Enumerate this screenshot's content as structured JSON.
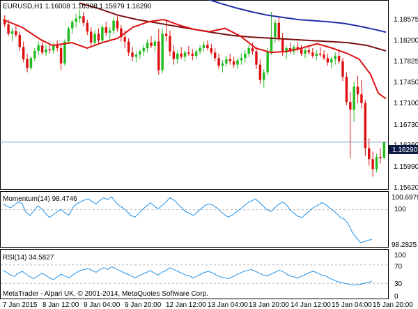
{
  "main_panel": {
    "title": "EURUSD,H1  1.16008 1.16308 1.15979 1.16290",
    "current_price_label": "1.16290",
    "price_ticks": [
      "1.18575",
      "1.18200",
      "1.17825",
      "1.17450",
      "1.17100",
      "1.16730",
      "1.16360",
      "1.15990",
      "1.15620"
    ]
  },
  "momentum_panel": {
    "title": "Momentum(14) 98.4746",
    "ticks": [
      "100.6979",
      "100",
      "98.2825"
    ]
  },
  "rsi_panel": {
    "title": "RSI(14) 34.5827",
    "ticks": [
      "100",
      "70",
      "30",
      "0"
    ]
  },
  "footer": {
    "copyright": "MetaTrader - Alpari UK, © 2001-2014, MetaQuotes Software Corp."
  },
  "time_axis": {
    "labels": [
      "7 Jan 2015",
      "8 Jan 12:00",
      "9 Jan 04:00",
      "9 Jan 20:00",
      "12 Jan 12:00",
      "13 Jan 04:00",
      "13 Jan 20:00",
      "14 Jan 12:00",
      "15 Jan 04:00",
      "15 Jan 20:00"
    ]
  },
  "colors": {
    "bull_candle": "#22bb22",
    "bear_candle": "#dd1010",
    "ma_fast": "#dd1010",
    "ma_mid": "#7a1010",
    "ma_slow": "#1f2fa8",
    "indicator_line": "#1e8fe6",
    "price_line": "#7a9ccf",
    "price_box": "#0b1d44",
    "level_dash": "#b8b8b8"
  },
  "chart_data": [
    {
      "type": "candlestick",
      "title": "EURUSD,H1",
      "ylim": [
        1.1545,
        1.1885
      ],
      "x": [
        "7 Jan 2015",
        "8 Jan 12:00",
        "9 Jan 04:00",
        "9 Jan 20:00",
        "12 Jan 12:00",
        "13 Jan 04:00",
        "13 Jan 20:00",
        "14 Jan 12:00",
        "15 Jan 04:00",
        "15 Jan 20:00"
      ],
      "last_candle": {
        "open": 1.16008,
        "high": 1.16308,
        "low": 1.15979,
        "close": 1.1629
      },
      "current_price": 1.1629,
      "candles": [
        [
          1.185,
          1.186,
          1.1838,
          1.1843
        ],
        [
          1.1843,
          1.1852,
          1.1822,
          1.1826
        ],
        [
          1.1826,
          1.1837,
          1.1812,
          1.1831
        ],
        [
          1.1831,
          1.1842,
          1.182,
          1.1824
        ],
        [
          1.1824,
          1.183,
          1.1795,
          1.1802
        ],
        [
          1.1802,
          1.1812,
          1.1774,
          1.178
        ],
        [
          1.178,
          1.179,
          1.1756,
          1.1764
        ],
        [
          1.1764,
          1.1785,
          1.176,
          1.1782
        ],
        [
          1.1782,
          1.18,
          1.1776,
          1.1795
        ],
        [
          1.1795,
          1.1812,
          1.1788,
          1.1805
        ],
        [
          1.1805,
          1.1812,
          1.1788,
          1.1792
        ],
        [
          1.1792,
          1.1806,
          1.1786,
          1.1798
        ],
        [
          1.1798,
          1.1808,
          1.179,
          1.1796
        ],
        [
          1.1796,
          1.181,
          1.179,
          1.1806
        ],
        [
          1.1806,
          1.1814,
          1.1794,
          1.18
        ],
        [
          1.18,
          1.1808,
          1.176,
          1.1772
        ],
        [
          1.1772,
          1.1816,
          1.1768,
          1.1812
        ],
        [
          1.1812,
          1.184,
          1.1808,
          1.1836
        ],
        [
          1.1836,
          1.1852,
          1.1826,
          1.1848
        ],
        [
          1.1848,
          1.1862,
          1.1838,
          1.1854
        ],
        [
          1.1854,
          1.187,
          1.1846,
          1.1858
        ],
        [
          1.1858,
          1.1866,
          1.184,
          1.1846
        ],
        [
          1.1846,
          1.1852,
          1.1824,
          1.183
        ],
        [
          1.183,
          1.1838,
          1.1804,
          1.181
        ],
        [
          1.181,
          1.1832,
          1.1806,
          1.1826
        ],
        [
          1.1826,
          1.1836,
          1.1808,
          1.1814
        ],
        [
          1.1814,
          1.1842,
          1.181,
          1.1838
        ],
        [
          1.1838,
          1.1848,
          1.1822,
          1.1828
        ],
        [
          1.1828,
          1.1838,
          1.1812,
          1.1832
        ],
        [
          1.1832,
          1.1856,
          1.1826,
          1.185
        ],
        [
          1.185,
          1.1858,
          1.183,
          1.1836
        ],
        [
          1.1836,
          1.1842,
          1.1812,
          1.182
        ],
        [
          1.182,
          1.1832,
          1.18,
          1.1812
        ],
        [
          1.1812,
          1.1818,
          1.1786,
          1.1792
        ],
        [
          1.1792,
          1.1802,
          1.1776,
          1.1784
        ],
        [
          1.1784,
          1.1794,
          1.1774,
          1.1788
        ],
        [
          1.1788,
          1.1798,
          1.178,
          1.1794
        ],
        [
          1.1794,
          1.1806,
          1.1786,
          1.18
        ],
        [
          1.18,
          1.1816,
          1.1792,
          1.181
        ],
        [
          1.181,
          1.1822,
          1.18,
          1.1804
        ],
        [
          1.1804,
          1.1816,
          1.1794,
          1.1812
        ],
        [
          1.1812,
          1.1835,
          1.1752,
          1.176
        ],
        [
          1.176,
          1.1836,
          1.1754,
          1.1826
        ],
        [
          1.1826,
          1.185,
          1.1812,
          1.1822
        ],
        [
          1.1822,
          1.1832,
          1.1786,
          1.1794
        ],
        [
          1.1794,
          1.1806,
          1.177,
          1.178
        ],
        [
          1.178,
          1.1796,
          1.1772,
          1.179
        ],
        [
          1.179,
          1.1802,
          1.178,
          1.1784
        ],
        [
          1.1784,
          1.1796,
          1.1776,
          1.1792
        ],
        [
          1.1792,
          1.1804,
          1.1786,
          1.179
        ],
        [
          1.179,
          1.1798,
          1.1778,
          1.1786
        ],
        [
          1.1786,
          1.1798,
          1.178,
          1.1794
        ],
        [
          1.1794,
          1.1806,
          1.1788,
          1.18
        ],
        [
          1.18,
          1.1812,
          1.1794,
          1.1806
        ],
        [
          1.1806,
          1.1814,
          1.1796,
          1.18
        ],
        [
          1.18,
          1.1808,
          1.1788,
          1.1792
        ],
        [
          1.1792,
          1.18,
          1.1776,
          1.1782
        ],
        [
          1.1782,
          1.179,
          1.1762,
          1.1768
        ],
        [
          1.1768,
          1.1778,
          1.1756,
          1.1772
        ],
        [
          1.1772,
          1.1786,
          1.1766,
          1.178
        ],
        [
          1.178,
          1.179,
          1.177,
          1.1776
        ],
        [
          1.1776,
          1.1784,
          1.1764,
          1.177
        ],
        [
          1.177,
          1.1782,
          1.1762,
          1.1778
        ],
        [
          1.1778,
          1.179,
          1.177,
          1.1782
        ],
        [
          1.1782,
          1.1796,
          1.1774,
          1.179
        ],
        [
          1.179,
          1.1806,
          1.1784,
          1.18
        ],
        [
          1.18,
          1.181,
          1.1788,
          1.1794
        ],
        [
          1.1794,
          1.1802,
          1.1762,
          1.177
        ],
        [
          1.177,
          1.178,
          1.1734,
          1.1742
        ],
        [
          1.1742,
          1.1762,
          1.1728,
          1.1756
        ],
        [
          1.1756,
          1.18,
          1.175,
          1.1794
        ],
        [
          1.1794,
          1.1866,
          1.1788,
          1.182
        ],
        [
          1.182,
          1.1852,
          1.181,
          1.1846
        ],
        [
          1.1846,
          1.1856,
          1.1812,
          1.1818
        ],
        [
          1.1818,
          1.1828,
          1.1786,
          1.1792
        ],
        [
          1.1792,
          1.1804,
          1.178,
          1.18
        ],
        [
          1.18,
          1.181,
          1.179,
          1.1794
        ],
        [
          1.1794,
          1.1806,
          1.1788,
          1.1802
        ],
        [
          1.1802,
          1.1812,
          1.1794,
          1.1798
        ],
        [
          1.1798,
          1.1806,
          1.1786,
          1.179
        ],
        [
          1.179,
          1.18,
          1.1782,
          1.1796
        ],
        [
          1.1796,
          1.1806,
          1.1788,
          1.1792
        ],
        [
          1.1792,
          1.18,
          1.1782,
          1.1786
        ],
        [
          1.1786,
          1.1796,
          1.1778,
          1.179
        ],
        [
          1.179,
          1.1802,
          1.1784,
          1.1788
        ],
        [
          1.1788,
          1.1796,
          1.1778,
          1.1782
        ],
        [
          1.1782,
          1.179,
          1.1768,
          1.1774
        ],
        [
          1.1774,
          1.1784,
          1.1764,
          1.178
        ],
        [
          1.178,
          1.1792,
          1.177,
          1.1786
        ],
        [
          1.1786,
          1.1796,
          1.1772,
          1.1776
        ],
        [
          1.1776,
          1.1782,
          1.174,
          1.1748
        ],
        [
          1.1748,
          1.1756,
          1.1696,
          1.1702
        ],
        [
          1.1702,
          1.172,
          1.16,
          1.1688
        ],
        [
          1.1688,
          1.1738,
          1.1666,
          1.173
        ],
        [
          1.173,
          1.175,
          1.17,
          1.1716
        ],
        [
          1.1716,
          1.1742,
          1.169,
          1.17
        ],
        [
          1.17,
          1.1706,
          1.1604,
          1.1618
        ],
        [
          1.1618,
          1.1636,
          1.1586,
          1.1598
        ],
        [
          1.1598,
          1.1612,
          1.1566,
          1.158
        ],
        [
          1.158,
          1.1608,
          1.1574,
          1.1602
        ],
        [
          1.1602,
          1.1618,
          1.159,
          1.16
        ],
        [
          1.16008,
          1.16308,
          1.15979,
          1.1629
        ]
      ],
      "series": [
        {
          "style": "ma_slow",
          "values": [
            [
              0.49,
              1.1897
            ],
            [
              0.53,
              1.189
            ],
            [
              0.57,
              1.1881
            ],
            [
              0.61,
              1.1873
            ],
            [
              0.65,
              1.1866
            ],
            [
              0.69,
              1.186
            ],
            [
              0.73,
              1.1856
            ],
            [
              0.77,
              1.1852
            ],
            [
              0.81,
              1.185
            ],
            [
              0.85,
              1.1848
            ],
            [
              0.89,
              1.1845
            ],
            [
              0.93,
              1.184
            ],
            [
              0.97,
              1.1834
            ],
            [
              1.0,
              1.1829
            ]
          ]
        },
        {
          "style": "ma_mid",
          "values": [
            [
              0.2,
              1.1882
            ],
            [
              0.25,
              1.1872
            ],
            [
              0.3,
              1.186
            ],
            [
              0.35,
              1.1852
            ],
            [
              0.4,
              1.1846
            ],
            [
              0.45,
              1.184
            ],
            [
              0.5,
              1.1834
            ],
            [
              0.55,
              1.1828
            ],
            [
              0.6,
              1.1823
            ],
            [
              0.65,
              1.182
            ],
            [
              0.7,
              1.1818
            ],
            [
              0.75,
              1.1816
            ],
            [
              0.8,
              1.1814
            ],
            [
              0.85,
              1.1812
            ],
            [
              0.9,
              1.181
            ],
            [
              0.95,
              1.1805
            ],
            [
              1.0,
              1.1795
            ]
          ]
        },
        {
          "style": "ma_fast",
          "values": [
            [
              0.0,
              1.1852
            ],
            [
              0.05,
              1.1838
            ],
            [
              0.1,
              1.1815
            ],
            [
              0.13,
              1.1805
            ],
            [
              0.18,
              1.181
            ],
            [
              0.22,
              1.18
            ],
            [
              0.26,
              1.181
            ],
            [
              0.3,
              1.1818
            ],
            [
              0.34,
              1.1838
            ],
            [
              0.38,
              1.1848
            ],
            [
              0.42,
              1.1852
            ],
            [
              0.46,
              1.1842
            ],
            [
              0.5,
              1.1834
            ],
            [
              0.54,
              1.183
            ],
            [
              0.58,
              1.1836
            ],
            [
              0.62,
              1.1822
            ],
            [
              0.66,
              1.18
            ],
            [
              0.7,
              1.1792
            ],
            [
              0.74,
              1.1794
            ],
            [
              0.78,
              1.18
            ],
            [
              0.82,
              1.1808
            ],
            [
              0.86,
              1.18
            ],
            [
              0.9,
              1.179
            ],
            [
              0.93,
              1.178
            ],
            [
              0.96,
              1.1752
            ],
            [
              0.98,
              1.1718
            ],
            [
              1.0,
              1.1708
            ]
          ]
        }
      ]
    },
    {
      "type": "line",
      "title": "Momentum(14)",
      "ylim": [
        98.15,
        100.85
      ],
      "levels": [
        100
      ],
      "series": [
        {
          "values": [
            100.3,
            100.18,
            100.1,
            100.24,
            100.4,
            100.3,
            99.85,
            99.7,
            99.95,
            100.2,
            100.05,
            99.8,
            99.6,
            99.75,
            99.9,
            100.02,
            99.82,
            99.72,
            100.1,
            100.3,
            100.4,
            100.5,
            100.55,
            100.42,
            100.3,
            100.48,
            100.62,
            100.52,
            100.66,
            100.4,
            100.2,
            100.08,
            99.9,
            99.7,
            99.62,
            99.8,
            100.02,
            100.2,
            100.35,
            100.18,
            100.05,
            100.22,
            100.4,
            100.62,
            100.5,
            100.3,
            100.1,
            99.9,
            99.82,
            99.7,
            99.86,
            100.05,
            100.22,
            100.3,
            100.24,
            100.1,
            99.92,
            99.75,
            99.62,
            99.72,
            99.86,
            100.02,
            100.18,
            100.35,
            100.45,
            100.56,
            100.38,
            100.18,
            100.0,
            99.9,
            100.1,
            100.28,
            100.4,
            100.24,
            99.98,
            99.8,
            99.65,
            99.6,
            99.78,
            99.95,
            100.12,
            100.22,
            100.36,
            100.28,
            100.1,
            99.96,
            99.78,
            99.58,
            99.5,
            99.22,
            98.8,
            98.55,
            98.3,
            98.35,
            98.42,
            98.47
          ]
        }
      ]
    },
    {
      "type": "line",
      "title": "RSI(14)",
      "ylim": [
        0,
        100
      ],
      "levels": [
        70,
        30
      ],
      "series": [
        {
          "values": [
            58,
            54,
            48,
            45,
            52,
            56,
            50,
            44,
            40,
            46,
            52,
            48,
            42,
            38,
            44,
            50,
            46,
            42,
            48,
            54,
            58,
            60,
            62,
            58,
            54,
            60,
            64,
            60,
            66,
            62,
            58,
            54,
            50,
            46,
            42,
            46,
            50,
            54,
            58,
            52,
            48,
            54,
            58,
            64,
            60,
            56,
            52,
            48,
            46,
            42,
            46,
            50,
            54,
            56,
            52,
            48,
            44,
            42,
            40,
            44,
            48,
            52,
            56,
            58,
            60,
            56,
            52,
            48,
            46,
            50,
            54,
            58,
            56,
            50,
            46,
            44,
            42,
            46,
            50,
            54,
            56,
            52,
            48,
            46,
            42,
            38,
            34,
            32,
            30,
            28,
            26,
            27,
            28,
            30,
            32,
            34.58
          ]
        }
      ]
    }
  ]
}
